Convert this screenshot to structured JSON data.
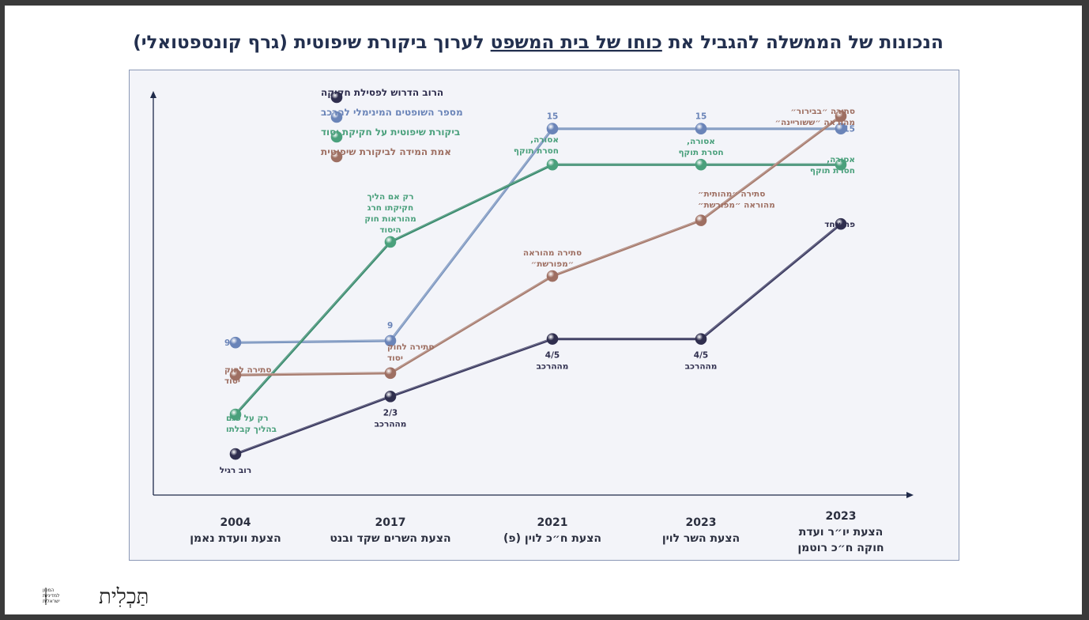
{
  "chart_data": {
    "type": "line",
    "title_parts": [
      {
        "text": "הנכונות של הממשלה להגביל את ",
        "underline": false
      },
      {
        "text": "כוחו של בית המשפט",
        "underline": true
      },
      {
        "text": " לערוך ביקורת שיפוטית (גרף קונספטואלי)",
        "underline": false
      }
    ],
    "categories": [
      {
        "year": "2004",
        "lines": [
          "הצעת וועדת נאמן"
        ]
      },
      {
        "year": "2017",
        "lines": [
          "הצעת השרים שקד ובנט"
        ]
      },
      {
        "year": "2021",
        "lines": [
          "הצעת ח״כ לוין (פ)"
        ]
      },
      {
        "year": "2023",
        "lines": [
          "הצעת השר לוין"
        ]
      },
      {
        "year": "2023",
        "lines": [
          "הצעת יו״ר ועדת",
          "חוקה ח״כ רוטמן"
        ]
      }
    ],
    "series": [
      {
        "key": "majority",
        "name": "הרוב הדרוש לפסילת חקיקה",
        "color": "#3e3d63",
        "legend_color": "#2f2e4e",
        "values": [
          0.9,
          2.5,
          4.1,
          4.1,
          7.3
        ],
        "labels": [
          {
            "lines": [
              "רוב רגיל"
            ],
            "pos": "below"
          },
          {
            "lines": [
              "2/3",
              "מההרכב"
            ],
            "pos": "below"
          },
          {
            "lines": [
              "4/5",
              "מההרכב"
            ],
            "pos": "below"
          },
          {
            "lines": [
              "4/5",
              "מההרכב"
            ],
            "pos": "below"
          },
          {
            "lines": [
              "פה אחד"
            ],
            "pos": "right"
          }
        ]
      },
      {
        "key": "judges",
        "name": "מספר השופטים המינימלי להרכב",
        "color": "#7d97c0",
        "legend_color": "#6a84b8",
        "values": [
          4.0,
          4.05,
          9.95,
          9.95,
          9.95
        ],
        "labels": [
          {
            "lines": [
              "9"
            ],
            "pos": "left"
          },
          {
            "lines": [
              "9"
            ],
            "pos": "aboveleft"
          },
          {
            "lines": [
              "15"
            ],
            "pos": "above"
          },
          {
            "lines": [
              "15"
            ],
            "pos": "above"
          },
          {
            "lines": [
              "15"
            ],
            "pos": "right"
          }
        ]
      },
      {
        "key": "basic",
        "name": "ביקורת שיפוטית על חקיקת יסוד",
        "color": "#3b8c6f",
        "legend_color": "#4aa07c",
        "values": [
          2.0,
          6.8,
          8.95,
          8.95,
          8.95
        ],
        "labels": [
          {
            "lines": [
              "רק על פגם",
              "בהליך קבלתו"
            ],
            "pos": "belowleft"
          },
          {
            "lines": [
              "רק אם הליך",
              "חקיקתו חרג",
              "מהוראות חוק",
              "היסוד"
            ],
            "pos": "above"
          },
          {
            "lines": [
              "אסורה,",
              "חסרת תוקף"
            ],
            "pos": "aboveright"
          },
          {
            "lines": [
              "אסורה,",
              "חסרת תוקף"
            ],
            "pos": "above"
          },
          {
            "lines": [
              "אסורה,",
              "חסרת תוקף"
            ],
            "pos": "right"
          }
        ]
      },
      {
        "key": "standard",
        "name": "אמת המידה לביקורת שיפוטית",
        "color": "#a87d70",
        "legend_color": "#9e6f62",
        "values": [
          3.1,
          3.15,
          5.85,
          7.4,
          10.3
        ],
        "labels": [
          {
            "lines": [
              "סתירה לחוק",
              "יסוד"
            ],
            "pos": "left"
          },
          {
            "lines": [
              "סתירה לחוק",
              "יסוד"
            ],
            "pos": "aboveleft"
          },
          {
            "lines": [
              "סתירה מהוראה",
              "״מפורשת״"
            ],
            "pos": "above"
          },
          {
            "lines": [
              "סתירה ״מהותית״",
              "מהוראה ״מפורשת״"
            ],
            "pos": "aboveleft"
          },
          {
            "lines": [
              "סתירה ״בבירור״",
              "מהוראה ״ששורײנה״"
            ],
            "pos": "right"
          }
        ]
      }
    ],
    "ylim": [
      0,
      11
    ],
    "xlabel": "",
    "ylabel": "",
    "legend_position": "top-left"
  },
  "logo": {
    "text": "תַּכְלִית",
    "sub": [
      "המכון",
      "למדיניות",
      "ישראלית"
    ]
  }
}
